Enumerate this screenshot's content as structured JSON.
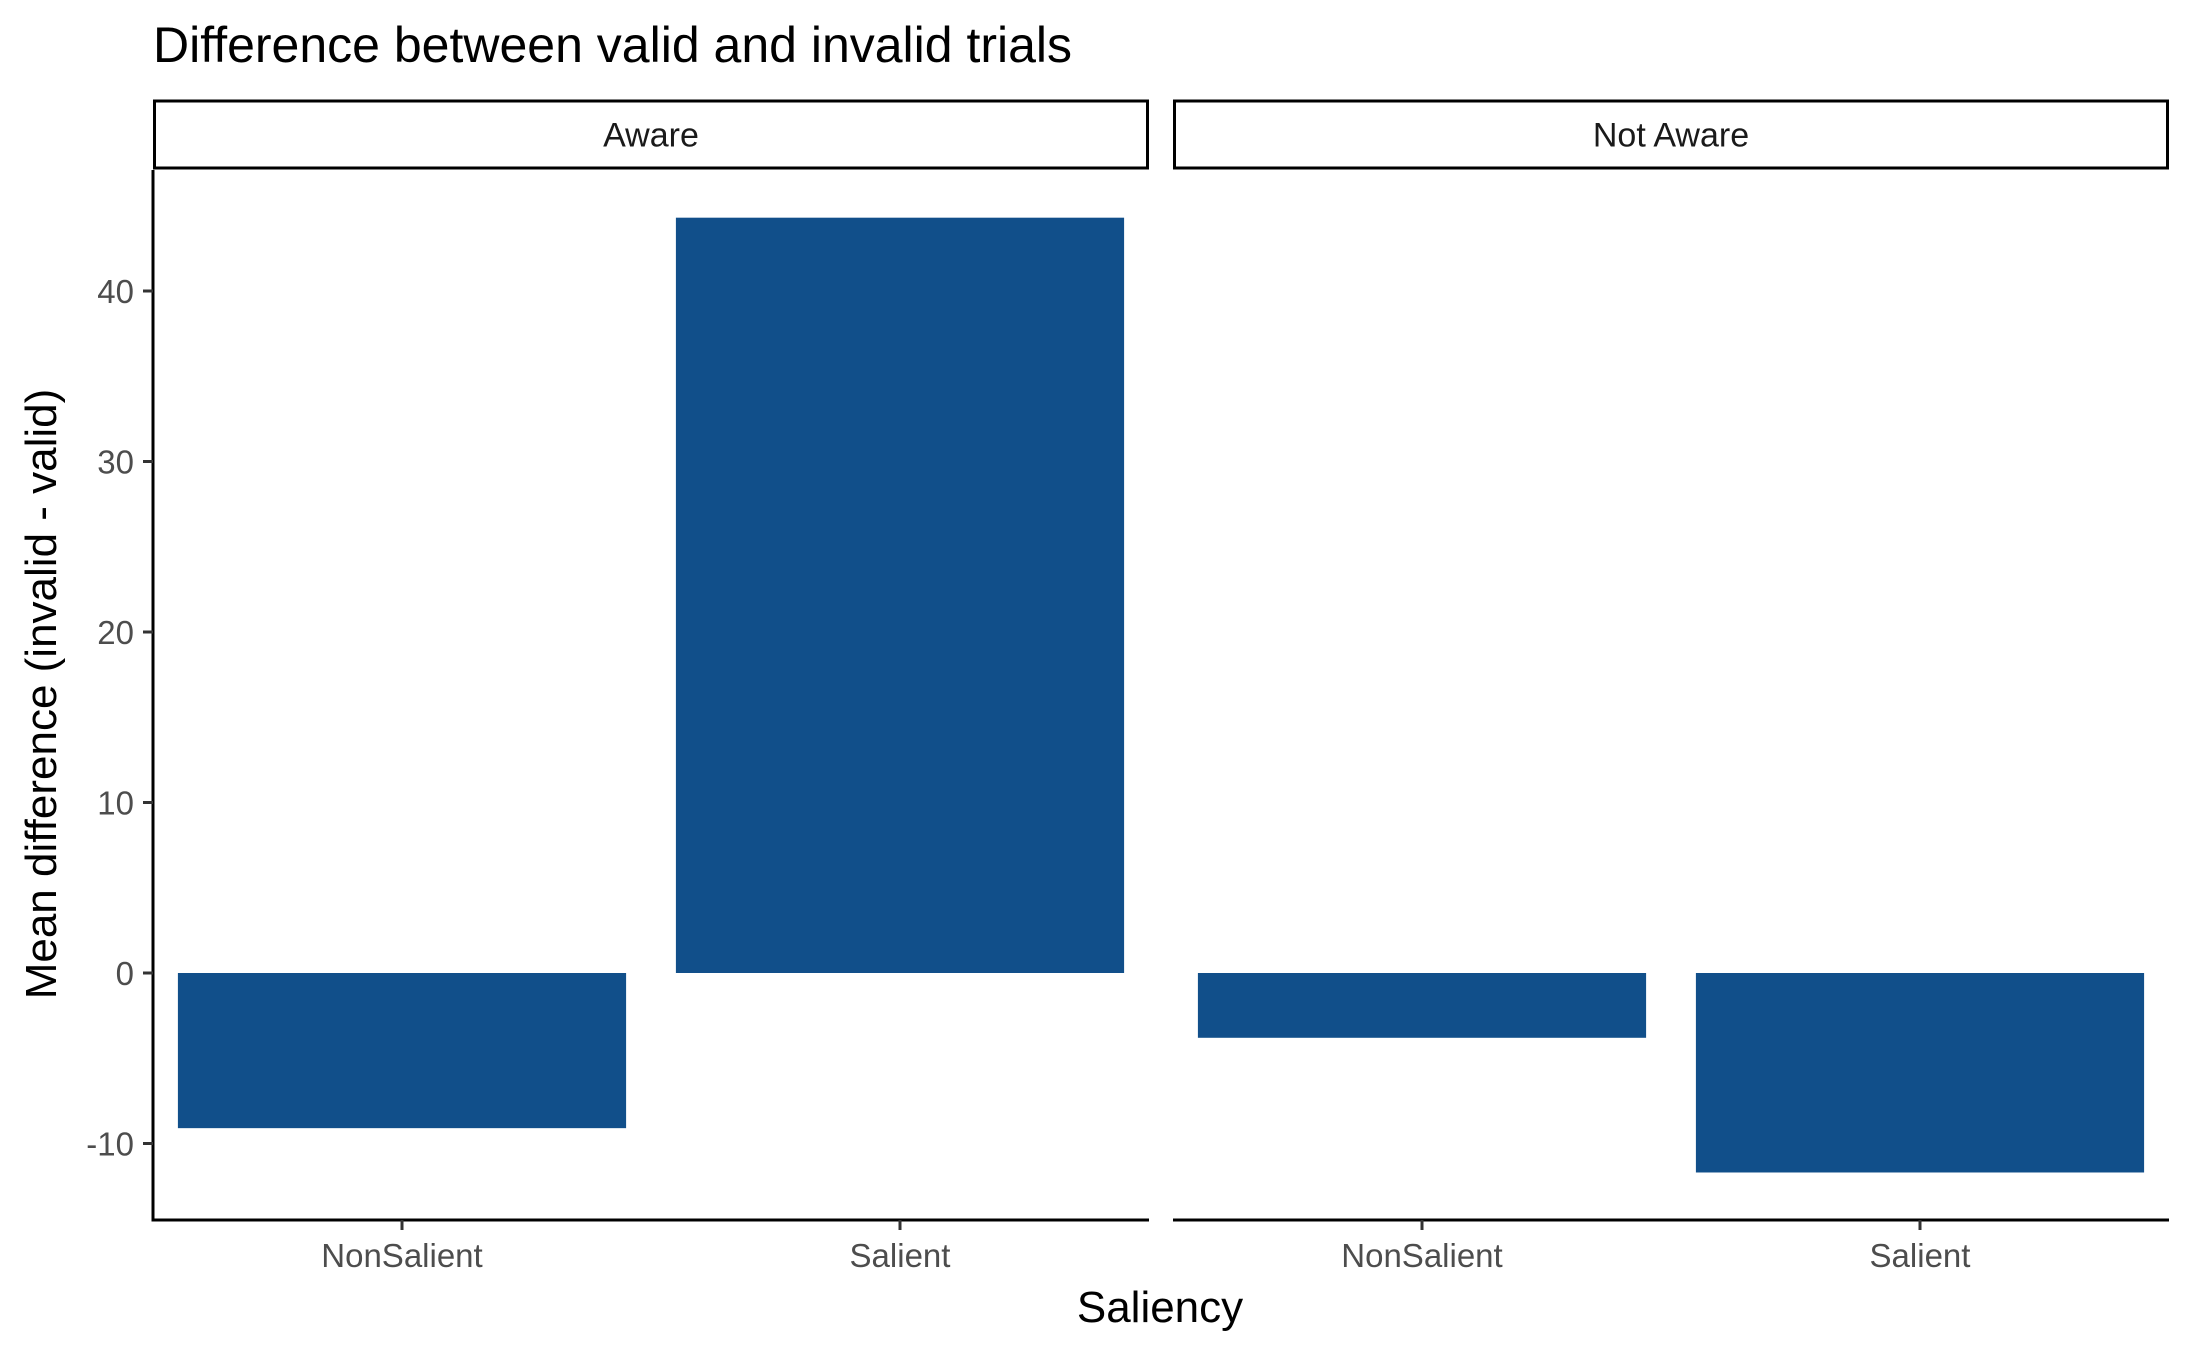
{
  "chart_data": {
    "type": "bar",
    "title": "Difference between valid and invalid trials",
    "xlabel": "Saliency",
    "ylabel": "Mean difference (invalid - valid)",
    "ylim": [
      -14.5,
      47
    ],
    "yticks": [
      -10,
      0,
      10,
      20,
      30,
      40
    ],
    "ytick_labels": [
      "-10",
      "0",
      "10",
      "20",
      "30",
      "40"
    ],
    "categories": [
      "NonSalient",
      "Salient"
    ],
    "bar_color": "#114f8a",
    "grid": false,
    "facets": [
      {
        "label": "Aware",
        "values": [
          -9.1,
          44.3
        ]
      },
      {
        "label": "Not Aware",
        "values": [
          -3.8,
          -11.7
        ]
      }
    ]
  }
}
